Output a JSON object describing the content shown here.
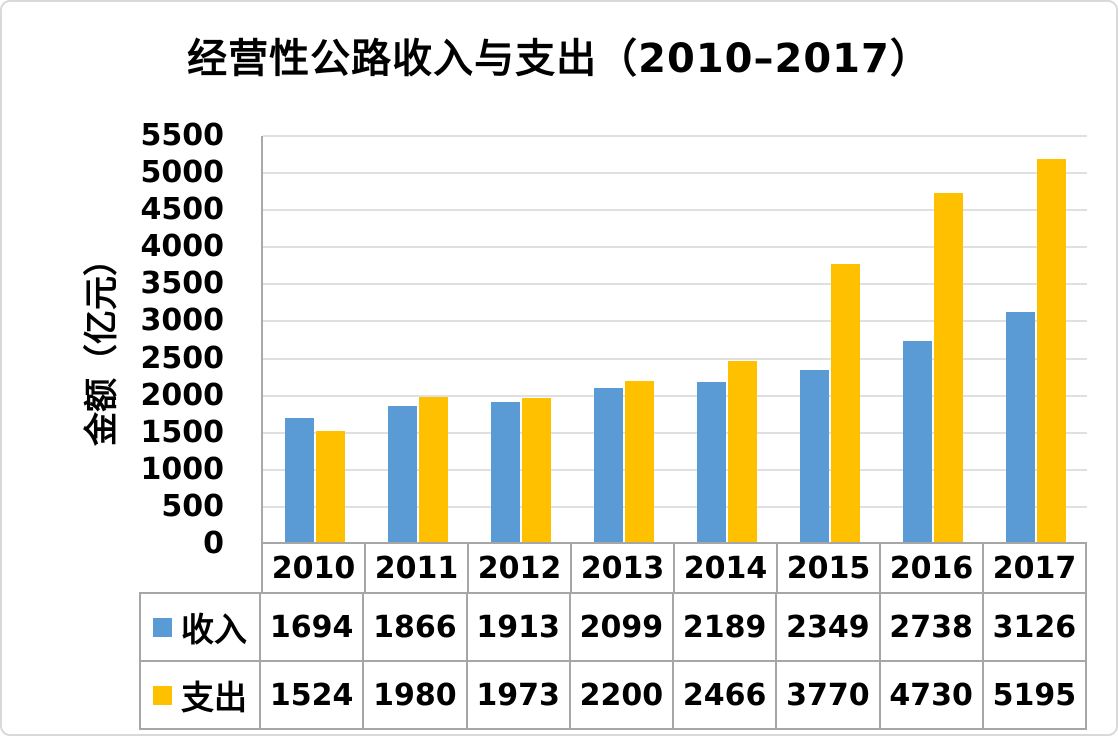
{
  "chart_data": {
    "type": "bar",
    "title": "经营性公路收入与支出（2010–2017）",
    "ylabel": "金额（亿元）",
    "xlabel": "",
    "categories": [
      "2010",
      "2011",
      "2012",
      "2013",
      "2014",
      "2015",
      "2016",
      "2017"
    ],
    "series": [
      {
        "name": "收入",
        "color": "#5B9BD5",
        "values": [
          1694,
          1866,
          1913,
          2099,
          2189,
          2349,
          2738,
          3126
        ]
      },
      {
        "name": "支出",
        "color": "#FFC000",
        "values": [
          1524,
          1980,
          1973,
          2200,
          2466,
          3770,
          4730,
          5195
        ]
      }
    ],
    "ylim": [
      0,
      5500
    ],
    "ytick_step": 500,
    "grid": true,
    "legend_position": "table-left",
    "colors": {
      "gridline": "#e0e0e0",
      "axis": "#a9a9a9",
      "table_border": "#a6a6a6",
      "text": "#000000"
    }
  }
}
